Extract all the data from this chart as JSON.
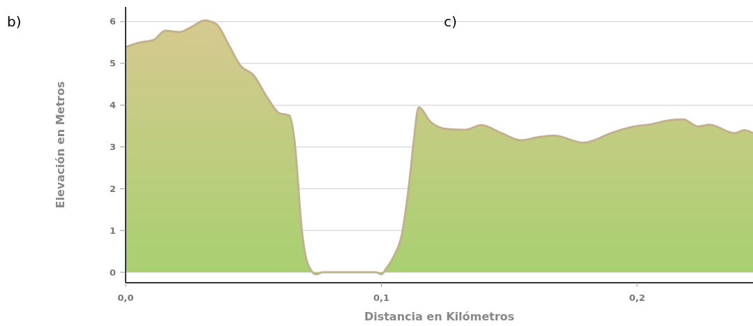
{
  "chart_data": {
    "type": "area",
    "xlabel": "Distancia en Kilómetros",
    "ylabel": "Elevación en Metros",
    "annotations": [
      "b)",
      "c)"
    ],
    "x": [
      0,
      0.0055,
      0.011,
      0.0155,
      0.021,
      0.0254,
      0.0309,
      0.0355,
      0.0401,
      0.045,
      0.05,
      0.0555,
      0.06,
      0.0641,
      0.066,
      0.069,
      0.0705,
      0.072,
      0.0745,
      0.077,
      0.098,
      0.1,
      0.102,
      0.105,
      0.108,
      0.111,
      0.1127,
      0.1146,
      0.1192,
      0.1255,
      0.1329,
      0.139,
      0.147,
      0.1545,
      0.161,
      0.1676,
      0.179,
      0.1827,
      0.1893,
      0.1989,
      0.2043,
      0.2128,
      0.218,
      0.2237,
      0.2283,
      0.2381,
      0.2419,
      0.2453
    ],
    "series": [
      {
        "color": "#a8d070",
        "values": [
          5.39,
          5.5,
          5.56,
          5.78,
          5.75,
          5.86,
          6.03,
          5.94,
          5.47,
          4.94,
          4.72,
          4.17,
          3.81,
          3.75,
          3.17,
          0.95,
          0.35,
          0.1,
          -0.05,
          0,
          0,
          -0.05,
          0.1,
          0.4,
          0.9,
          2.2,
          3.17,
          3.95,
          3.6,
          3.43,
          3.41,
          3.52,
          3.33,
          3.16,
          3.23,
          3.27,
          3.1,
          3.15,
          3.32,
          3.49,
          3.53,
          3.64,
          3.66,
          3.49,
          3.53,
          3.33,
          3.4,
          3.33
        ]
      }
    ],
    "xlim": [
      0,
      0.2453
    ],
    "ylim": [
      -0.25,
      6.35
    ],
    "xticks": [
      {
        "value": 0,
        "label": "0,0"
      },
      {
        "value": 0.1,
        "label": "0,1"
      },
      {
        "value": 0.2,
        "label": "0,2"
      }
    ],
    "yticks": [
      0,
      1,
      2,
      3,
      4,
      5,
      6
    ],
    "grid": "y"
  }
}
